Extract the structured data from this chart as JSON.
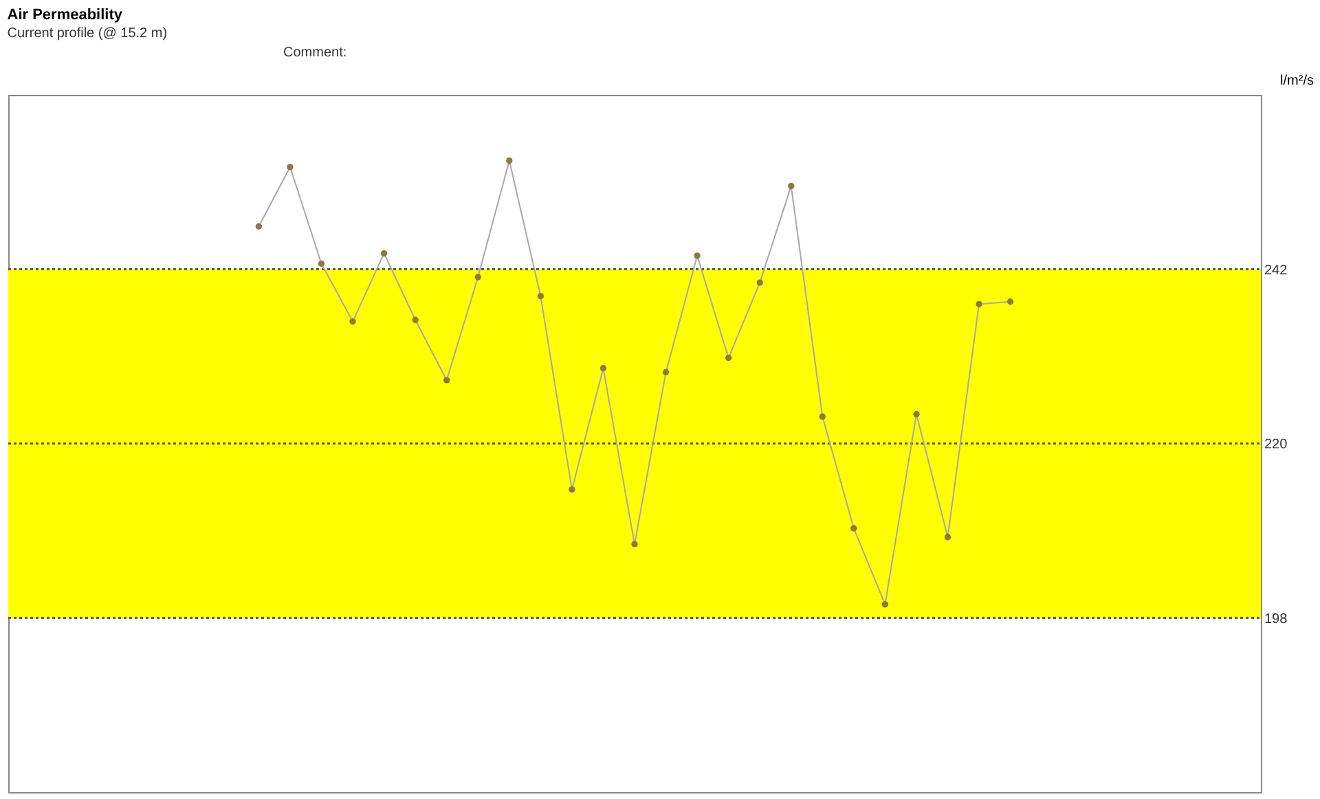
{
  "chart_data": {
    "type": "line",
    "title": "Air Permeability",
    "subtitle": "Current profile (@ 15.2 m)",
    "ylabel": "l/m²/s",
    "annotations": [
      "Comment:"
    ],
    "categories": [
      null,
      null,
      null,
      null,
      null,
      null,
      null,
      null,
      null,
      null,
      null,
      null,
      null,
      null,
      null,
      null,
      null,
      null,
      null,
      null,
      null,
      null,
      null,
      null,
      null,
      null,
      null,
      null,
      null,
      null,
      null,
      null,
      null,
      null,
      null,
      null,
      null,
      null,
      null,
      null,
      null
    ],
    "series": [
      {
        "color": "#a8a4b4",
        "values": [
          null,
          null,
          null,
          null,
          null,
          null,
          null,
          null,
          247.4,
          254.9,
          242.7,
          235.4,
          244.0,
          235.6,
          228.0,
          241.0,
          255.7,
          238.6,
          214.2,
          229.5,
          207.3,
          229.0,
          243.7,
          230.8,
          240.3,
          252.5,
          223.4,
          209.3,
          199.7,
          223.7,
          208.2,
          237.6,
          237.9,
          null,
          null,
          null,
          null,
          null,
          null,
          null,
          null
        ]
      }
    ],
    "ylim": [
      176,
      264
    ],
    "yticks": [
      198,
      220,
      242
    ],
    "bands": [
      {
        "axis": "y",
        "from": 198,
        "to": 242,
        "color": "#ffff00"
      }
    ],
    "ref_lines": [
      {
        "axis": "y",
        "value": 242,
        "line_style": "dotted",
        "color": "#555555"
      },
      {
        "axis": "y",
        "value": 220,
        "line_style": "dotted",
        "color": "#555555"
      },
      {
        "axis": "y",
        "value": 198,
        "line_style": "dotted",
        "color": "#555555"
      }
    ],
    "marker": "circle",
    "line_style": "solid",
    "grid": false,
    "tick_labels": "y"
  }
}
